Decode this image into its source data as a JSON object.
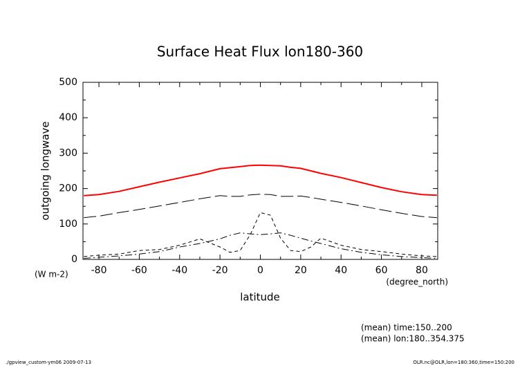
{
  "chart_data": {
    "type": "line",
    "title": "Surface Heat Flux lon180-360",
    "x_label": "latitude",
    "x_unit": "(degree_north)",
    "y_label": "outgoing longwave",
    "y_unit": "(W m-2)",
    "annotations": [
      "(mean) time:150..200",
      "(mean) lon:180..354.375"
    ],
    "footer_left": "./gpview_custom-ym06  2009-07-13",
    "footer_right": "OLR.nc@OLR,lon=180:360,time=150:200",
    "x": [
      -87.5,
      -80,
      -70,
      -60,
      -50,
      -40,
      -30,
      -20,
      -15,
      -10,
      -5,
      0,
      5,
      10,
      15,
      20,
      25,
      30,
      40,
      50,
      60,
      70,
      80,
      87.5
    ],
    "series": [
      {
        "color": "#ff0000",
        "dash": "solid",
        "values": [
          180,
          183,
          192,
          205,
          218,
          230,
          242,
          256,
          259,
          262,
          265,
          266,
          265,
          264,
          260,
          257,
          250,
          243,
          231,
          217,
          203,
          191,
          183,
          181
        ]
      },
      {
        "color": "#000000",
        "dash": "long-dash",
        "values": [
          118,
          122,
          132,
          141,
          151,
          161,
          171,
          180,
          178,
          178,
          182,
          184,
          183,
          178,
          178,
          179,
          175,
          170,
          161,
          151,
          140,
          130,
          121,
          118
        ]
      },
      {
        "color": "#000000",
        "dash": "dash-dot",
        "values": [
          3,
          6,
          10,
          15,
          22,
          35,
          45,
          58,
          68,
          75,
          72,
          70,
          72,
          75,
          68,
          60,
          52,
          45,
          30,
          20,
          13,
          8,
          5,
          3
        ]
      },
      {
        "color": "#000000",
        "dash": "short-dash",
        "values": [
          8,
          12,
          15,
          25,
          28,
          40,
          58,
          35,
          20,
          25,
          70,
          132,
          125,
          60,
          25,
          22,
          35,
          60,
          40,
          28,
          22,
          15,
          10,
          8
        ]
      }
    ],
    "xlim": [
      -87.9,
      87.9
    ],
    "xticks": [
      -80,
      -60,
      -40,
      -20,
      0,
      20,
      40,
      60,
      80
    ],
    "xminorticks": [
      -70,
      -50,
      -30,
      -10,
      10,
      30,
      50,
      70
    ],
    "ylim": [
      0,
      500
    ],
    "yticks": [
      0,
      100,
      200,
      300,
      400,
      500
    ],
    "yminorticks": [
      50,
      150,
      250,
      350,
      450
    ],
    "grid": false
  }
}
